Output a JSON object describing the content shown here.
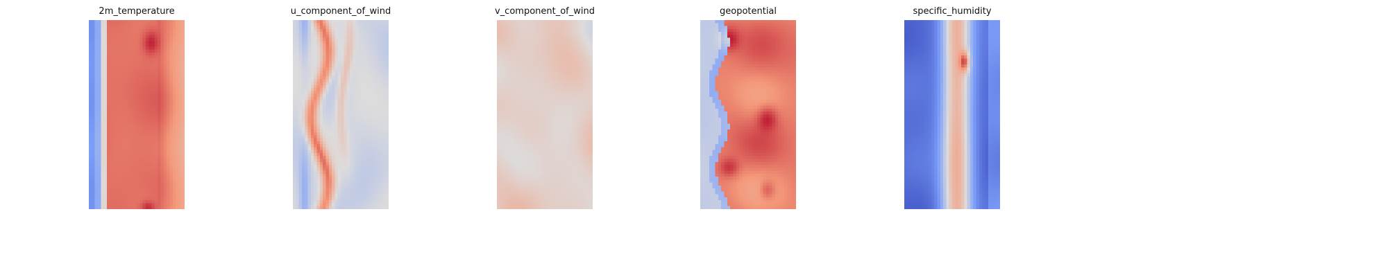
{
  "chart_data": [
    {
      "type": "heatmap",
      "title": "2m_temperature",
      "colormap": "coolwarm",
      "axes": "off",
      "grid": false,
      "legend": "none",
      "pattern": "blue band along left edge, broad warm (red) field across center, lighter warm toward right edge"
    },
    {
      "type": "heatmap",
      "title": "u_component_of_wind",
      "colormap": "coolwarm",
      "axes": "off",
      "grid": false,
      "legend": "none",
      "pattern": "wavy red streaks on left-center, mixed light blue and gray elsewhere"
    },
    {
      "type": "heatmap",
      "title": "v_component_of_wind",
      "colormap": "coolwarm",
      "axes": "off",
      "grid": false,
      "legend": "none",
      "pattern": "patchy mix of light red and blue blobs throughout"
    },
    {
      "type": "heatmap",
      "title": "geopotential",
      "colormap": "coolwarm",
      "axes": "off",
      "grid": false,
      "legend": "none",
      "pattern": "light gray/blue left strip with wavy edge, dominant red interior with dark red cores"
    },
    {
      "type": "heatmap",
      "title": "specific_humidity",
      "colormap": "coolwarm",
      "axes": "off",
      "grid": false,
      "legend": "none",
      "pattern": "strong blue on both sides, narrow light red band down the center with dark red spot near top"
    }
  ],
  "colors": {
    "deep_blue": "#3b4cc0",
    "blue": "#6a8bef",
    "light_blue": "#aac7fd",
    "neutral": "#dddcdc",
    "light_red": "#f4b89c",
    "red": "#dc5d4a",
    "deep_red": "#b40426"
  }
}
